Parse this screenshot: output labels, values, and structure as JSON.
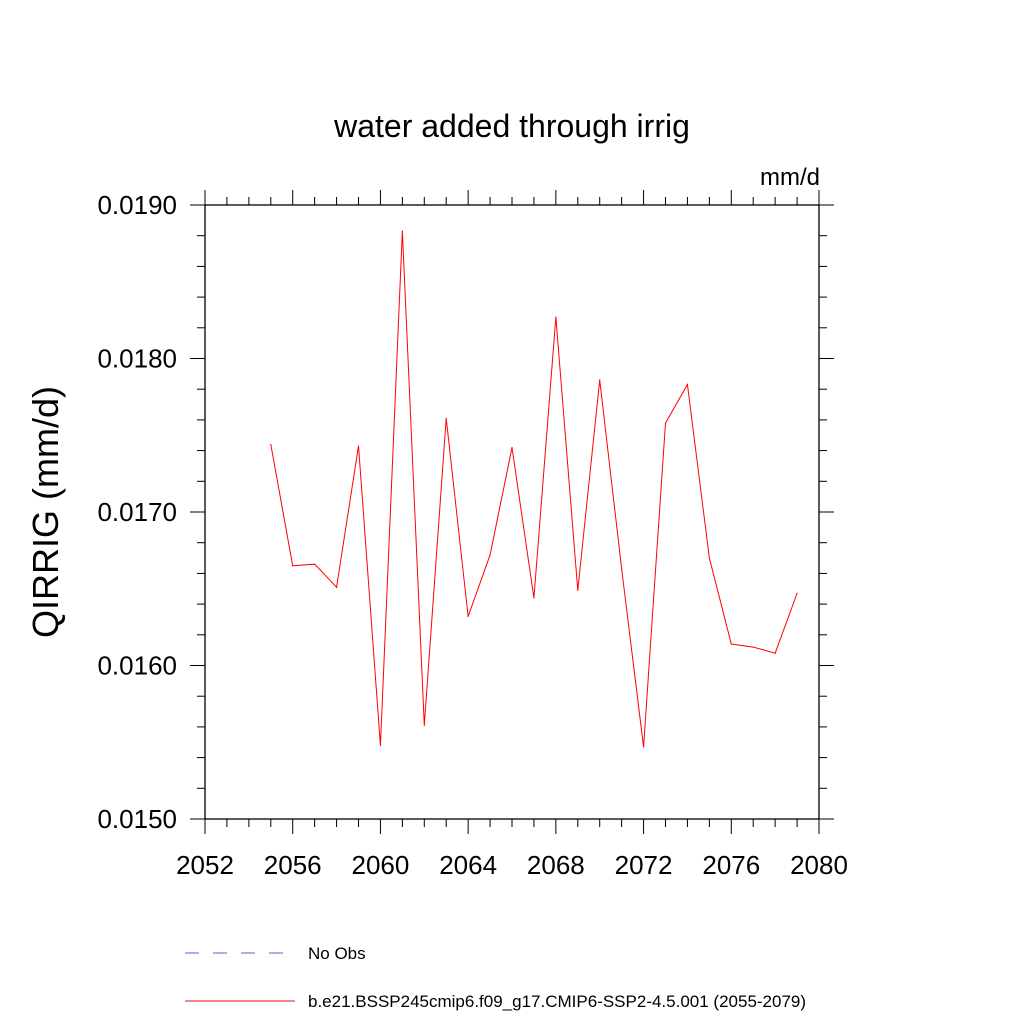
{
  "chart_data": {
    "type": "line",
    "title": "water added through irrig",
    "units": "mm/d",
    "xlabel": "",
    "ylabel": "QIRRIG  (mm/d)",
    "xlim": [
      2052,
      2080
    ],
    "ylim": [
      0.015,
      0.019
    ],
    "xticks": [
      2052,
      2056,
      2060,
      2064,
      2068,
      2072,
      2076,
      2080
    ],
    "xtick_labels": [
      "2052",
      "2056",
      "2060",
      "2064",
      "2068",
      "2072",
      "2076",
      "2080"
    ],
    "yticks": [
      0.015,
      0.016,
      0.017,
      0.018,
      0.019
    ],
    "ytick_labels": [
      "0.0150",
      "0.0160",
      "0.0170",
      "0.0180",
      "0.0190"
    ],
    "series": [
      {
        "name": "b.e21.BSSP245cmip6.f09_g17.CMIP6-SSP2-4.5.001 (2055-2079)",
        "color": "#ff0000",
        "x": [
          2055,
          2056,
          2057,
          2058,
          2059,
          2060,
          2061,
          2062,
          2063,
          2064,
          2065,
          2066,
          2067,
          2068,
          2069,
          2070,
          2071,
          2072,
          2073,
          2074,
          2075,
          2076,
          2077,
          2078,
          2079
        ],
        "values": [
          0.01744,
          0.01665,
          0.01666,
          0.01651,
          0.01743,
          0.01548,
          0.01883,
          0.01561,
          0.01761,
          0.01632,
          0.01672,
          0.01742,
          0.01644,
          0.01827,
          0.01649,
          0.01786,
          0.01663,
          0.01547,
          0.01758,
          0.01783,
          0.0167,
          0.01614,
          0.01612,
          0.01608,
          0.01647
        ]
      }
    ],
    "legend": [
      {
        "label": "No Obs",
        "color": "#6a5acd",
        "style": "dashed"
      },
      {
        "label": "b.e21.BSSP245cmip6.f09_g17.CMIP6-SSP2-4.5.001 (2055-2079)",
        "color": "#ff0000",
        "style": "solid"
      }
    ]
  }
}
